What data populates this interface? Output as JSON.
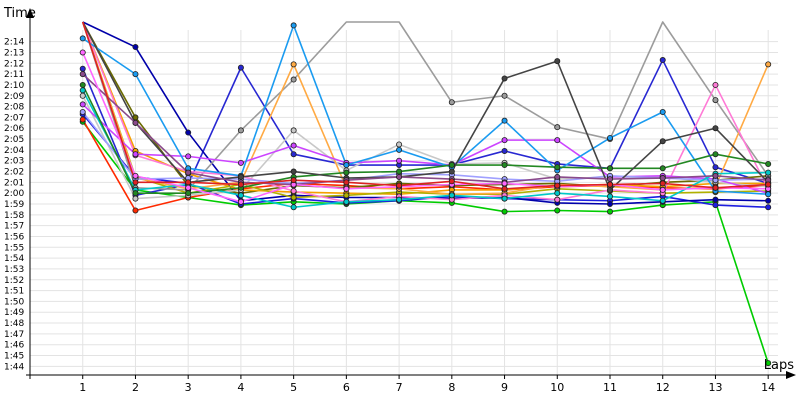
{
  "chart_data": {
    "type": "line",
    "xlabel": "Laps",
    "ylabel": "Time",
    "x": [
      1,
      2,
      3,
      4,
      5,
      6,
      7,
      8,
      9,
      10,
      11,
      12,
      13,
      14
    ],
    "xlim": [
      0,
      14.3
    ],
    "ylim": [
      103.2,
      136
    ],
    "yticks": [
      104,
      105,
      106,
      107,
      108,
      109,
      110,
      111,
      112,
      113,
      114,
      115,
      116,
      117,
      118,
      119,
      120,
      121,
      122,
      123,
      124,
      125,
      126,
      127,
      128,
      129,
      130,
      131,
      132,
      133,
      134
    ],
    "ytick_labels": [
      "1:44",
      "1:45",
      "1:46",
      "1:47",
      "1:48",
      "1:49",
      "1:50",
      "1:51",
      "1:52",
      "1:53",
      "1:54",
      "1:55",
      "1:56",
      "1:57",
      "1:58",
      "1:59",
      "2:00",
      "2:01",
      "2:02",
      "2:03",
      "2:04",
      "2:05",
      "2:06",
      "2:07",
      "2:08",
      "2:09",
      "2:10",
      "2:11",
      "2:12",
      "2:13",
      "2:14"
    ],
    "grid": true,
    "series": [
      {
        "color": "#00cc00",
        "values": [
          126.6,
          120.3,
          119.6,
          118.9,
          119.2,
          119.0,
          119.3,
          119.1,
          118.3,
          118.4,
          118.3,
          118.9,
          119.2,
          104.3
        ]
      },
      {
        "color": "#ff2a00",
        "values": [
          126.8,
          118.4,
          119.6,
          120.4,
          120.9,
          120.7,
          120.4,
          120.6,
          120.3,
          120.6,
          120.7,
          120.5,
          120.4,
          120.7
        ]
      },
      {
        "color": "#1e1ee0",
        "values": [
          127.3,
          121.5,
          120.9,
          119.0,
          119.5,
          119.1,
          119.3,
          119.7,
          119.5,
          119.4,
          119.3,
          119.7,
          118.9,
          118.7
        ]
      },
      {
        "color": "#2828d2",
        "values": [
          131.5,
          119.8,
          120.8,
          131.6,
          123.6,
          122.6,
          122.6,
          122.6,
          123.9,
          122.7,
          122.3,
          132.3,
          122.4,
          120.9
        ]
      },
      {
        "color": "#0000aa",
        "values": [
          136.0,
          133.5,
          125.6,
          119.3,
          119.8,
          119.6,
          119.6,
          119.5,
          119.6,
          119.1,
          119.0,
          119.2,
          119.4,
          119.3
        ]
      },
      {
        "color": "#6a6a00",
        "values": [
          136.0,
          127.0,
          120.7,
          120.0,
          120.7,
          120.5,
          120.9,
          120.7,
          120.8,
          120.9,
          120.6,
          121.0,
          121.2,
          121.6
        ]
      },
      {
        "color": "#f5a000",
        "values": [
          136.0,
          123.9,
          121.8,
          120.3,
          120.1,
          120.0,
          119.9,
          120.3,
          120.3,
          120.7,
          120.8,
          120.6,
          120.9,
          120.9
        ]
      },
      {
        "color": "#b0b000",
        "values": [
          136.0,
          121.5,
          120.0,
          120.8,
          119.6,
          119.8,
          120.1,
          119.9,
          119.9,
          120.4,
          120.2,
          120.0,
          120.1,
          120.2
        ]
      },
      {
        "color": "#9c9c9c",
        "values": [
          136.0,
          120.5,
          120.3,
          125.8,
          130.5,
          136.0,
          136.0,
          128.4,
          129.0,
          126.1,
          125.0,
          136.0,
          128.6,
          121.6
        ]
      },
      {
        "color": "#c8c8c8",
        "values": [
          129.0,
          119.5,
          119.8,
          120.3,
          125.8,
          122.1,
          124.5,
          122.7,
          122.8,
          121.3,
          121.5,
          121.5,
          121.0,
          120.6
        ]
      },
      {
        "color": "#ffaa44",
        "values": [
          136.0,
          121.4,
          120.4,
          121.0,
          131.9,
          120.5,
          120.4,
          119.9,
          120.0,
          120.8,
          120.6,
          120.3,
          120.6,
          131.9
        ]
      },
      {
        "color": "#ff7ad6",
        "values": [
          136.0,
          123.5,
          122.0,
          121.6,
          120.2,
          119.2,
          119.7,
          119.4,
          119.8,
          119.4,
          120.3,
          120.0,
          130.0,
          120.4
        ]
      },
      {
        "color": "#cc44ff",
        "values": [
          128.2,
          123.6,
          123.4,
          122.8,
          124.4,
          122.8,
          123.0,
          122.6,
          124.9,
          124.9,
          121.5,
          121.6,
          121.3,
          120.0
        ]
      },
      {
        "color": "#a0a0ff",
        "values": [
          127.5,
          121.3,
          121.4,
          121.3,
          120.9,
          121.2,
          121.8,
          121.7,
          121.3,
          121.1,
          121.6,
          121.4,
          121.2,
          121.3
        ]
      },
      {
        "color": "#1a9bf0",
        "values": [
          134.3,
          131.0,
          122.3,
          121.6,
          135.5,
          122.6,
          124.0,
          122.4,
          126.7,
          122.1,
          125.1,
          127.5,
          120.2,
          119.9
        ]
      },
      {
        "color": "#00c8c8",
        "values": [
          129.5,
          120.3,
          120.8,
          119.8,
          118.7,
          119.2,
          119.4,
          119.8,
          119.5,
          120.0,
          119.7,
          119.3,
          121.8,
          121.9
        ]
      },
      {
        "color": "#228822",
        "values": [
          130.0,
          120.0,
          120.0,
          120.5,
          121.5,
          121.9,
          122.0,
          122.6,
          122.6,
          122.4,
          122.3,
          122.3,
          123.6,
          122.7
        ]
      },
      {
        "color": "#444444",
        "values": [
          136.0,
          126.5,
          121.0,
          121.5,
          122.0,
          121.4,
          121.5,
          122.0,
          130.6,
          132.2,
          120.3,
          124.8,
          126.0,
          121.0
        ]
      },
      {
        "color": "#8a4a8a",
        "values": [
          131.0,
          126.5,
          121.9,
          121.0,
          120.8,
          121.2,
          121.5,
          121.3,
          121.0,
          121.5,
          121.3,
          121.4,
          121.6,
          121.2
        ]
      },
      {
        "color": "#ff66ff",
        "values": [
          133.0,
          121.6,
          120.5,
          119.2,
          120.8,
          120.4,
          120.6,
          120.8,
          120.9,
          120.6,
          120.8,
          120.3,
          120.5,
          120.4
        ]
      },
      {
        "color": "#dd2222",
        "values": [
          136.0,
          121.0,
          121.0,
          120.8,
          121.2,
          121.0,
          120.7,
          121.1,
          120.4,
          120.7,
          120.8,
          120.9,
          120.5,
          120.8
        ]
      }
    ]
  }
}
